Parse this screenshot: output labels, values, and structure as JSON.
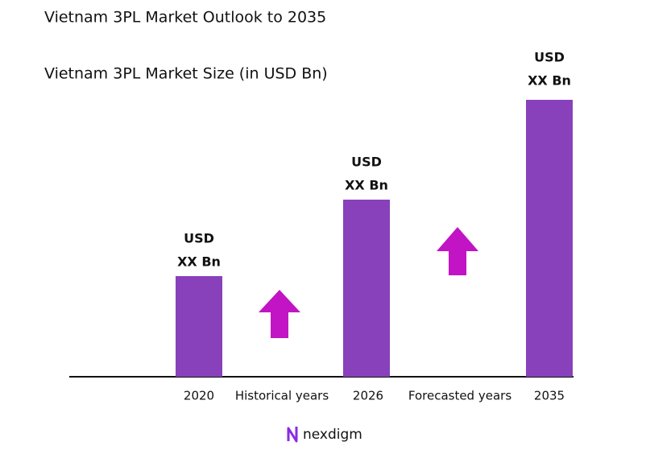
{
  "header": {
    "title": "Vietnam 3PL Market Outlook to 2035",
    "subtitle": "Vietnam 3PL Market Size (in USD Bn)"
  },
  "bars": [
    {
      "year": "2020",
      "label_top": "USD",
      "label_bottom": "XX Bn"
    },
    {
      "year": "2026",
      "label_top": "USD",
      "label_bottom": "XX Bn"
    },
    {
      "year": "2035",
      "label_top": "USD",
      "label_bottom": "XX Bn"
    }
  ],
  "periods": [
    "Historical years",
    "Forecasted years"
  ],
  "logo": "nexdigm"
}
